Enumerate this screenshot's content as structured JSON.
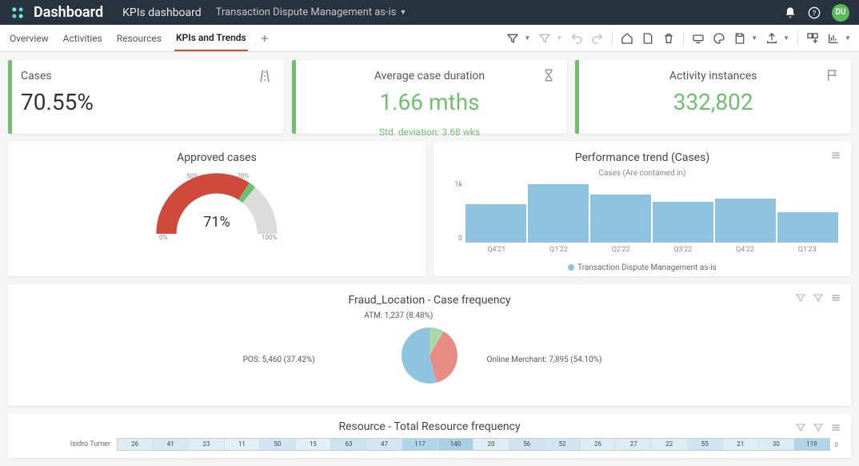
{
  "topbar": {
    "brand": "Dashboard",
    "sub1": "KPIs dashboard",
    "sub2": "Transaction Dispute Management as-is",
    "avatar_initials": "DU"
  },
  "tabs": {
    "items": [
      "Overview",
      "Activities",
      "Resources",
      "KPIs and Trends"
    ],
    "active_index": 3
  },
  "kpis": {
    "cases": {
      "title": "Cases",
      "value": "70.55%",
      "accent_color": "#6fbf6f"
    },
    "duration": {
      "title": "Average case duration",
      "value": "1.66 mths",
      "sub": "Std. deviation: 3.68 wks",
      "value_color": "#6fbf6f",
      "accent_color": "#6fbf6f"
    },
    "activity": {
      "title": "Activity instances",
      "value": "332,802",
      "value_color": "#6fbf6f",
      "accent_color": "#6fbf6f"
    }
  },
  "gauge": {
    "title": "Approved cases",
    "value_pct": 71,
    "value_label": "71%",
    "arc_fill_color": "#d04a3c",
    "arc_bg_color": "#dcdcdc",
    "ticks": {
      "left": "0%",
      "mid1": "50%",
      "mid2": "70%",
      "right": "100%"
    },
    "peak_marker_pct": 70
  },
  "perf_trend": {
    "title": "Performance trend (Cases)",
    "subtitle": "Cases (Are contained in)",
    "y_ticks": [
      "1k",
      "0"
    ],
    "categories": [
      "Q4'21",
      "Q1'22",
      "Q2'22",
      "Q3'22",
      "Q4'22",
      "Q1'23"
    ],
    "values": [
      680,
      1050,
      860,
      730,
      780,
      540
    ],
    "max": 1100,
    "bar_color": "#8fc4e0",
    "legend_label": "Transaction Dispute Management as-is"
  },
  "fraud_pie": {
    "title": "Fraud_Location - Case frequency",
    "slices": [
      {
        "label": "ATM: 1,237 (8.48%)",
        "value": 8.48,
        "color": "#a8d8a8"
      },
      {
        "label": "POS: 5,460 (37.42%)",
        "value": 37.42,
        "color": "#e88b82"
      },
      {
        "label": "Online Merchant: 7,895 (54.10%)",
        "value": 54.1,
        "color": "#8fc4e0"
      }
    ]
  },
  "resource_heat": {
    "title": "Resource - Total Resource frequency",
    "row_label": "Isidro Turner",
    "cells": [
      "26",
      "41",
      "23",
      "11",
      "50",
      "15",
      "63",
      "47",
      "117",
      "140",
      "20",
      "56",
      "52",
      "26",
      "27",
      "22",
      "55",
      "21",
      "30",
      "119"
    ],
    "scale_label": "0"
  }
}
